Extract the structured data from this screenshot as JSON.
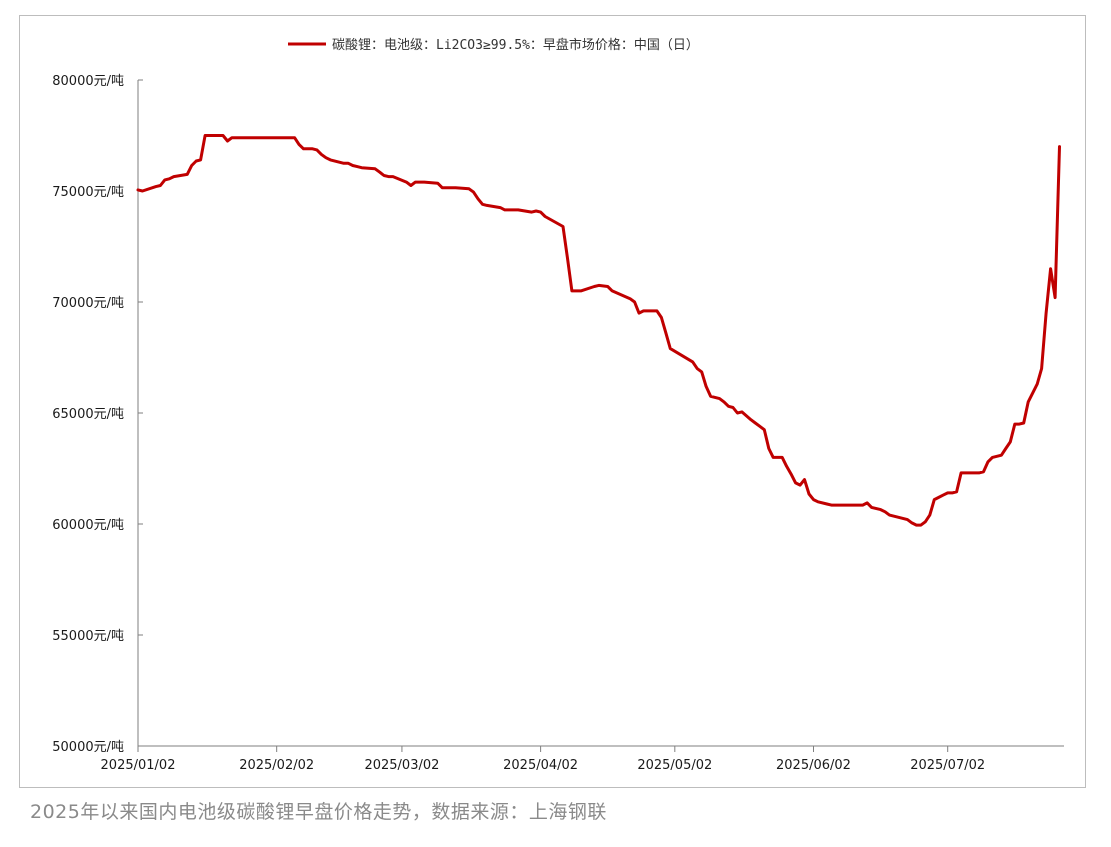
{
  "caption": "2025年以来国内电池级碳酸锂早盘价格走势，数据来源：上海钢联",
  "chart_data": {
    "type": "line",
    "legend_position": "top-center",
    "grid": false,
    "colors": {
      "series": "#c00000"
    },
    "y_unit": "元/吨",
    "ylim": [
      50000,
      80000
    ],
    "y_ticks": [
      50000,
      55000,
      60000,
      65000,
      70000,
      75000,
      80000
    ],
    "x_ticks": [
      "2025/01/02",
      "2025/02/02",
      "2025/03/02",
      "2025/04/02",
      "2025/05/02",
      "2025/06/02",
      "2025/07/02"
    ],
    "xlim": [
      "2025-01-02",
      "2025-07-28"
    ],
    "series": [
      {
        "name": "碳酸锂：电池级：Li2CO3≥99.5%：早盘市场价格：中国（日）",
        "points": [
          [
            "2025-01-02",
            75050
          ],
          [
            "2025-01-03",
            75000
          ],
          [
            "2025-01-06",
            75200
          ],
          [
            "2025-01-07",
            75250
          ],
          [
            "2025-01-08",
            75500
          ],
          [
            "2025-01-09",
            75550
          ],
          [
            "2025-01-10",
            75650
          ],
          [
            "2025-01-13",
            75750
          ],
          [
            "2025-01-14",
            76150
          ],
          [
            "2025-01-15",
            76350
          ],
          [
            "2025-01-16",
            76400
          ],
          [
            "2025-01-17",
            77500
          ],
          [
            "2025-01-20",
            77500
          ],
          [
            "2025-01-21",
            77500
          ],
          [
            "2025-01-22",
            77250
          ],
          [
            "2025-01-23",
            77400
          ],
          [
            "2025-01-24",
            77400
          ],
          [
            "2025-02-05",
            77400
          ],
          [
            "2025-02-06",
            77400
          ],
          [
            "2025-02-07",
            77100
          ],
          [
            "2025-02-08",
            76900
          ],
          [
            "2025-02-10",
            76900
          ],
          [
            "2025-02-11",
            76850
          ],
          [
            "2025-02-12",
            76650
          ],
          [
            "2025-02-13",
            76500
          ],
          [
            "2025-02-14",
            76400
          ],
          [
            "2025-02-17",
            76250
          ],
          [
            "2025-02-18",
            76250
          ],
          [
            "2025-02-19",
            76150
          ],
          [
            "2025-02-20",
            76100
          ],
          [
            "2025-02-21",
            76050
          ],
          [
            "2025-02-24",
            76000
          ],
          [
            "2025-02-25",
            75850
          ],
          [
            "2025-02-26",
            75700
          ],
          [
            "2025-02-27",
            75650
          ],
          [
            "2025-02-28",
            75650
          ],
          [
            "2025-03-03",
            75400
          ],
          [
            "2025-03-04",
            75250
          ],
          [
            "2025-03-05",
            75400
          ],
          [
            "2025-03-07",
            75400
          ],
          [
            "2025-03-10",
            75350
          ],
          [
            "2025-03-11",
            75150
          ],
          [
            "2025-03-14",
            75150
          ],
          [
            "2025-03-17",
            75100
          ],
          [
            "2025-03-18",
            74950
          ],
          [
            "2025-03-19",
            74650
          ],
          [
            "2025-03-20",
            74400
          ],
          [
            "2025-03-21",
            74350
          ],
          [
            "2025-03-24",
            74250
          ],
          [
            "2025-03-25",
            74150
          ],
          [
            "2025-03-28",
            74150
          ],
          [
            "2025-03-31",
            74050
          ],
          [
            "2025-04-01",
            74100
          ],
          [
            "2025-04-02",
            74050
          ],
          [
            "2025-04-03",
            73850
          ],
          [
            "2025-04-07",
            73400
          ],
          [
            "2025-04-08",
            72000
          ],
          [
            "2025-04-09",
            70500
          ],
          [
            "2025-04-11",
            70500
          ],
          [
            "2025-04-14",
            70700
          ],
          [
            "2025-04-15",
            70750
          ],
          [
            "2025-04-17",
            70700
          ],
          [
            "2025-04-18",
            70500
          ],
          [
            "2025-04-22",
            70150
          ],
          [
            "2025-04-23",
            70000
          ],
          [
            "2025-04-24",
            69500
          ],
          [
            "2025-04-25",
            69600
          ],
          [
            "2025-04-28",
            69600
          ],
          [
            "2025-04-29",
            69300
          ],
          [
            "2025-04-30",
            68600
          ],
          [
            "2025-05-01",
            67900
          ],
          [
            "2025-05-06",
            67300
          ],
          [
            "2025-05-07",
            67000
          ],
          [
            "2025-05-08",
            66850
          ],
          [
            "2025-05-09",
            66200
          ],
          [
            "2025-05-10",
            65750
          ],
          [
            "2025-05-12",
            65650
          ],
          [
            "2025-05-13",
            65500
          ],
          [
            "2025-05-14",
            65300
          ],
          [
            "2025-05-15",
            65250
          ],
          [
            "2025-05-16",
            65000
          ],
          [
            "2025-05-17",
            65050
          ],
          [
            "2025-05-19",
            64700
          ],
          [
            "2025-05-20",
            64550
          ],
          [
            "2025-05-21",
            64400
          ],
          [
            "2025-05-22",
            64250
          ],
          [
            "2025-05-23",
            63400
          ],
          [
            "2025-05-24",
            63000
          ],
          [
            "2025-05-26",
            63000
          ],
          [
            "2025-05-27",
            62600
          ],
          [
            "2025-05-28",
            62250
          ],
          [
            "2025-05-29",
            61850
          ],
          [
            "2025-05-30",
            61750
          ],
          [
            "2025-05-31",
            62000
          ],
          [
            "2025-06-01",
            61350
          ],
          [
            "2025-06-02",
            61100
          ],
          [
            "2025-06-03",
            61000
          ],
          [
            "2025-06-05",
            60900
          ],
          [
            "2025-06-06",
            60850
          ],
          [
            "2025-06-13",
            60850
          ],
          [
            "2025-06-14",
            60950
          ],
          [
            "2025-06-15",
            60750
          ],
          [
            "2025-06-17",
            60650
          ],
          [
            "2025-06-18",
            60550
          ],
          [
            "2025-06-19",
            60400
          ],
          [
            "2025-06-20",
            60350
          ],
          [
            "2025-06-21",
            60300
          ],
          [
            "2025-06-23",
            60200
          ],
          [
            "2025-06-24",
            60050
          ],
          [
            "2025-06-25",
            59950
          ],
          [
            "2025-06-26",
            59950
          ],
          [
            "2025-06-27",
            60100
          ],
          [
            "2025-06-28",
            60400
          ],
          [
            "2025-06-29",
            61100
          ],
          [
            "2025-06-30",
            61200
          ],
          [
            "2025-07-01",
            61300
          ],
          [
            "2025-07-02",
            61400
          ],
          [
            "2025-07-03",
            61400
          ],
          [
            "2025-07-04",
            61450
          ],
          [
            "2025-07-05",
            62300
          ],
          [
            "2025-07-07",
            62300
          ],
          [
            "2025-07-09",
            62300
          ],
          [
            "2025-07-10",
            62350
          ],
          [
            "2025-07-11",
            62800
          ],
          [
            "2025-07-12",
            63000
          ],
          [
            "2025-07-14",
            63100
          ],
          [
            "2025-07-15",
            63400
          ],
          [
            "2025-07-16",
            63700
          ],
          [
            "2025-07-17",
            64500
          ],
          [
            "2025-07-18",
            64500
          ],
          [
            "2025-07-19",
            64550
          ],
          [
            "2025-07-20",
            65500
          ],
          [
            "2025-07-22",
            66300
          ],
          [
            "2025-07-23",
            67000
          ],
          [
            "2025-07-24",
            69500
          ],
          [
            "2025-07-25",
            71500
          ],
          [
            "2025-07-26",
            70200
          ],
          [
            "2025-07-27",
            77000
          ]
        ]
      }
    ]
  }
}
